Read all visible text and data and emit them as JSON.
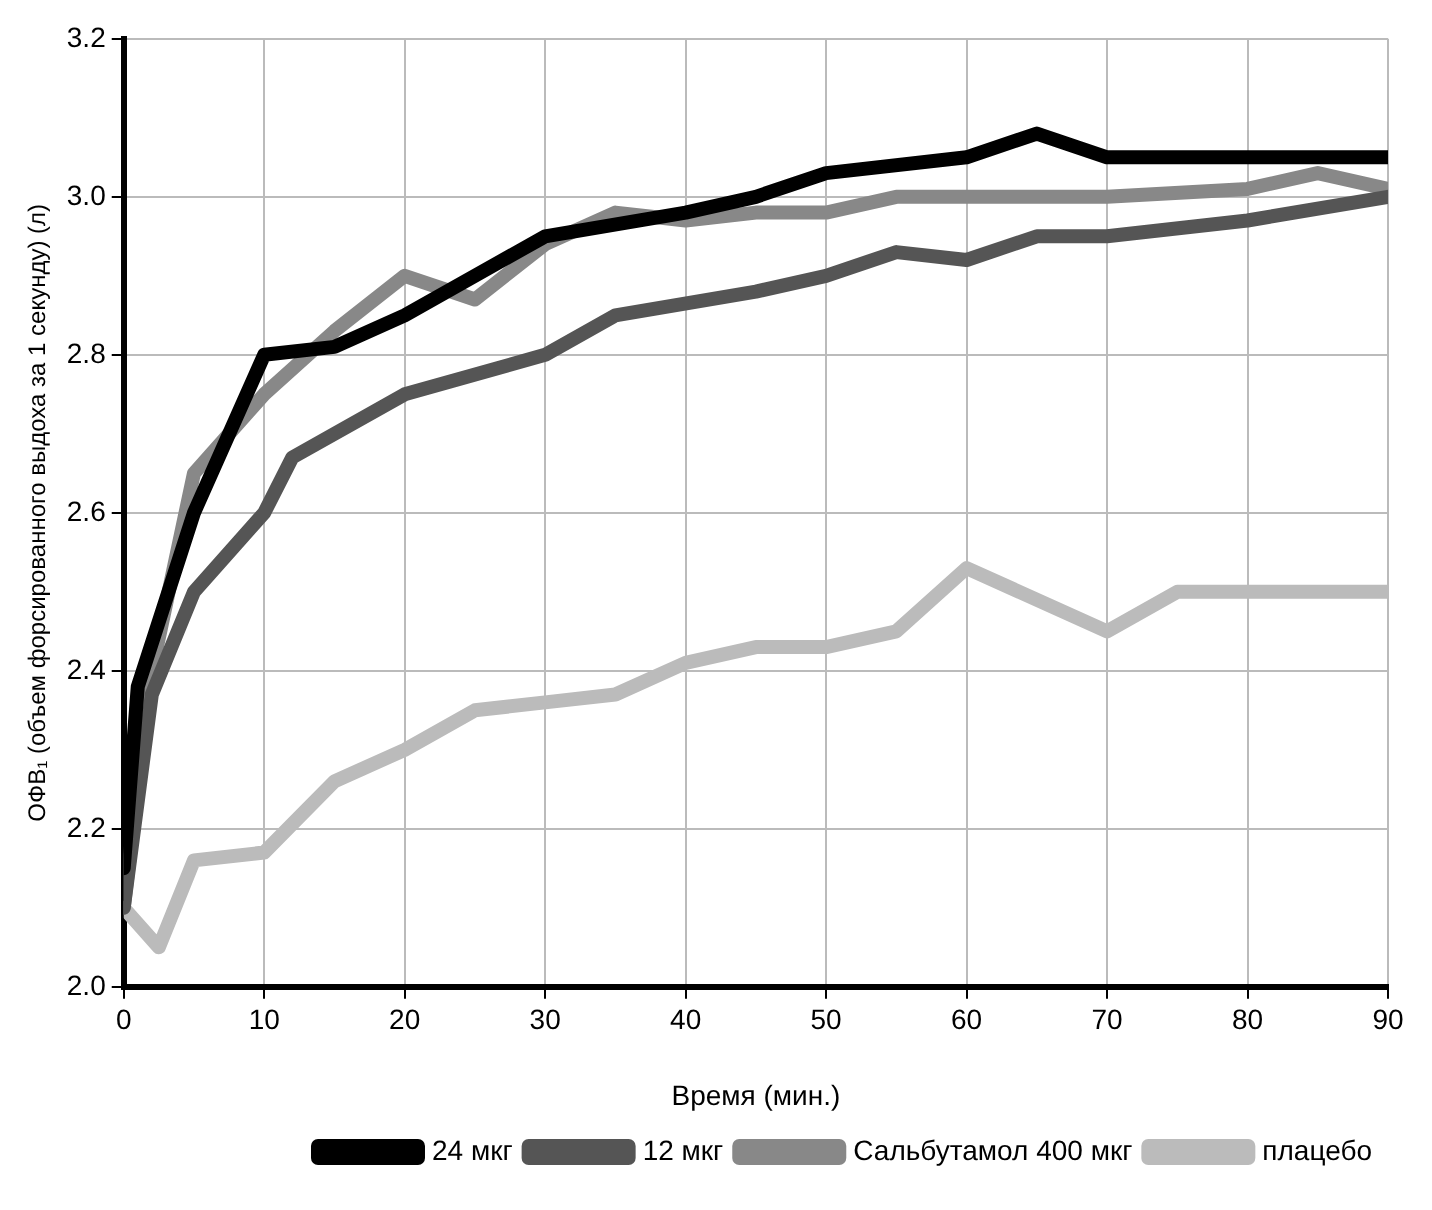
{
  "chart_data": {
    "type": "line",
    "xlabel": "Время (мин.)",
    "ylabel": "ОФВ₁ (объем форсированного выдоха за 1 секунду) (л)",
    "xlim": [
      0,
      90
    ],
    "xticks": [
      0,
      10,
      20,
      30,
      40,
      50,
      60,
      70,
      80,
      90
    ],
    "ylim": [
      2.0,
      3.2
    ],
    "yticks": [
      {
        "value": 2,
        "label": "2.0"
      },
      2.2,
      2.4,
      2.6,
      2.8,
      {
        "value": 3,
        "label": "3.0"
      },
      3.2
    ],
    "grid": true,
    "legend": "bottom right",
    "marker": "none",
    "line_style": "solid",
    "series": [
      {
        "name": "24 мкг",
        "color": "#000000",
        "x": [
          0,
          1,
          5,
          10,
          15,
          20,
          30,
          40,
          45,
          50,
          60,
          65,
          70,
          80,
          90
        ],
        "values": [
          2.15,
          2.38,
          2.6,
          2.8,
          2.81,
          2.85,
          2.95,
          2.98,
          3.0,
          3.03,
          3.05,
          3.08,
          3.05,
          3.05,
          3.05
        ]
      },
      {
        "name": "12 мкг",
        "color": "#555555",
        "x": [
          0,
          2,
          5,
          10,
          12,
          20,
          30,
          35,
          45,
          50,
          55,
          60,
          65,
          70,
          80,
          90
        ],
        "values": [
          2.1,
          2.37,
          2.5,
          2.6,
          2.67,
          2.75,
          2.8,
          2.85,
          2.88,
          2.9,
          2.93,
          2.92,
          2.95,
          2.95,
          2.97,
          3.0
        ]
      },
      {
        "name": "Сальбутамол 400 мкг",
        "color": "#888888",
        "x": [
          0,
          2,
          5,
          10,
          15,
          20,
          25,
          30,
          35,
          40,
          45,
          50,
          55,
          60,
          70,
          80,
          85,
          90
        ],
        "values": [
          2.1,
          2.4,
          2.65,
          2.75,
          2.83,
          2.9,
          2.87,
          2.94,
          2.98,
          2.97,
          2.98,
          2.98,
          3.0,
          3.0,
          3.0,
          3.01,
          3.03,
          3.01
        ]
      },
      {
        "name": "плацебо",
        "color": "#bbbbbb",
        "x": [
          0,
          2.5,
          5,
          10,
          15,
          20,
          25,
          30,
          35,
          40,
          45,
          50,
          55,
          60,
          70,
          75,
          90
        ],
        "values": [
          2.1,
          2.05,
          2.16,
          2.17,
          2.26,
          2.3,
          2.35,
          2.36,
          2.37,
          2.41,
          2.43,
          2.43,
          2.45,
          2.53,
          2.45,
          2.5,
          2.5
        ]
      }
    ]
  }
}
